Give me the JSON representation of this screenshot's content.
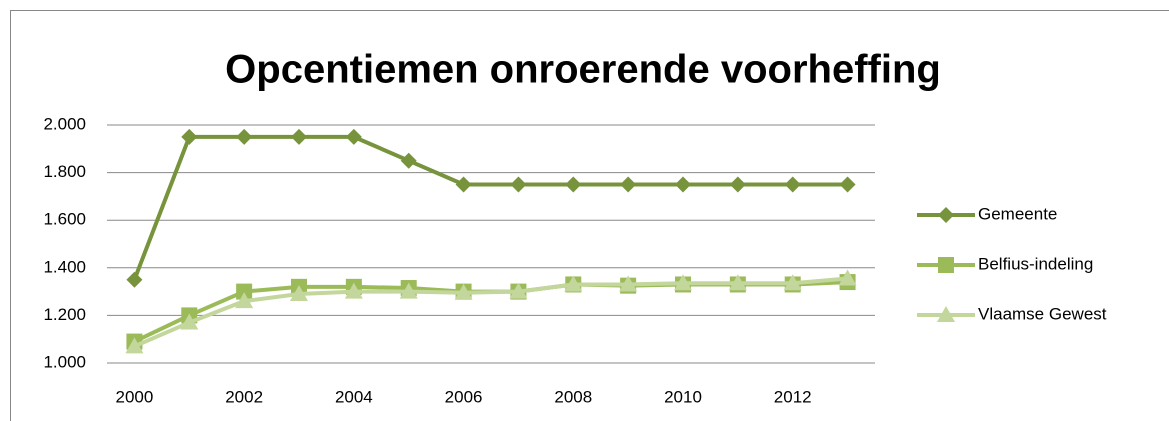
{
  "chart_data": {
    "type": "line",
    "title": "Opcentiemen onroerende voorheffing",
    "x": [
      2000,
      2001,
      2002,
      2003,
      2004,
      2005,
      2006,
      2007,
      2008,
      2009,
      2010,
      2011,
      2012,
      2013
    ],
    "series": [
      {
        "name": "Gemeente",
        "color": "#77933c",
        "marker": "diamond",
        "values": [
          1350,
          1950,
          1950,
          1950,
          1950,
          1850,
          1750,
          1750,
          1750,
          1750,
          1750,
          1750,
          1750,
          1750
        ]
      },
      {
        "name": "Belfius-indeling",
        "color": "#9bbb59",
        "marker": "square",
        "values": [
          1090,
          1200,
          1300,
          1320,
          1320,
          1315,
          1300,
          1300,
          1330,
          1325,
          1330,
          1330,
          1330,
          1340
        ]
      },
      {
        "name": "Vlaamse Gewest",
        "color": "#c3d69b",
        "marker": "triangle",
        "values": [
          1070,
          1170,
          1260,
          1290,
          1300,
          1300,
          1295,
          1300,
          1330,
          1330,
          1335,
          1335,
          1335,
          1355
        ]
      }
    ],
    "xlim": [
      1999.5,
      2013.5
    ],
    "xticks": [
      2000,
      2002,
      2004,
      2006,
      2008,
      2010,
      2012
    ],
    "ylim": [
      1000,
      2000
    ],
    "yticks": [
      {
        "value": 1000,
        "label": "1.000"
      },
      {
        "value": 1200,
        "label": "1.200"
      },
      {
        "value": 1400,
        "label": "1.400"
      },
      {
        "value": 1600,
        "label": "1.600"
      },
      {
        "value": 1800,
        "label": "1.800"
      },
      {
        "value": 2000,
        "label": "2.000"
      }
    ],
    "grid": true,
    "legend": "right"
  }
}
